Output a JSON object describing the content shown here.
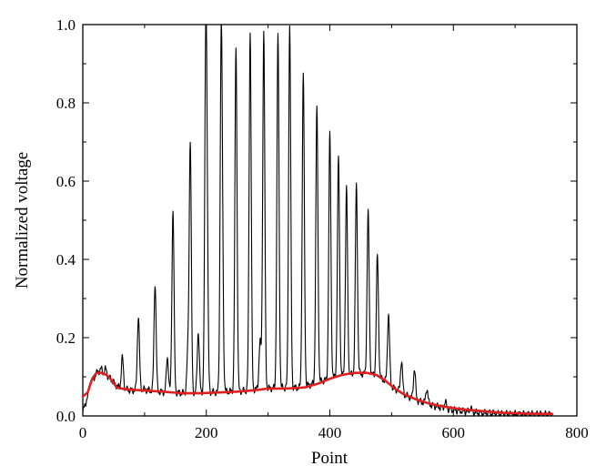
{
  "chart_data": {
    "type": "line",
    "title": "",
    "xlabel": "Point",
    "ylabel": "Normalized voltage",
    "xlim": [
      0,
      800
    ],
    "ylim": [
      0,
      1.0
    ],
    "xticks": [
      "0",
      "200",
      "400",
      "600",
      "800"
    ],
    "yticks": [
      "0.0",
      "0.2",
      "0.4",
      "0.6",
      "0.8",
      "1.0"
    ],
    "grid": false,
    "legend": "none",
    "series": [
      {
        "color": "#000000",
        "style": "line",
        "values": [],
        "baseline": [
          [
            0,
            0.01
          ],
          [
            8,
            0.05
          ],
          [
            15,
            0.09
          ],
          [
            25,
            0.115
          ],
          [
            35,
            0.105
          ],
          [
            45,
            0.095
          ],
          [
            50,
            0.085
          ],
          [
            60,
            0.07
          ],
          [
            80,
            0.065
          ],
          [
            100,
            0.068
          ],
          [
            120,
            0.062
          ],
          [
            140,
            0.06
          ],
          [
            170,
            0.058
          ],
          [
            200,
            0.06
          ],
          [
            230,
            0.062
          ],
          [
            260,
            0.064
          ],
          [
            290,
            0.07
          ],
          [
            320,
            0.072
          ],
          [
            350,
            0.072
          ],
          [
            380,
            0.085
          ],
          [
            410,
            0.1
          ],
          [
            430,
            0.105
          ],
          [
            450,
            0.108
          ],
          [
            470,
            0.105
          ],
          [
            490,
            0.09
          ],
          [
            500,
            0.075
          ],
          [
            520,
            0.055
          ],
          [
            540,
            0.04
          ],
          [
            570,
            0.025
          ],
          [
            600,
            0.015
          ],
          [
            640,
            0.008
          ],
          [
            680,
            0.005
          ],
          [
            720,
            0.004
          ],
          [
            760,
            0.004
          ]
        ],
        "peaks": [
          [
            13,
            0.09
          ],
          [
            30,
            0.12
          ],
          [
            37,
            0.12
          ],
          [
            64,
            0.15
          ],
          [
            90,
            0.255
          ],
          [
            117,
            0.34
          ],
          [
            137,
            0.15
          ],
          [
            146,
            0.525
          ],
          [
            170,
            0.15
          ],
          [
            174,
            0.7
          ],
          [
            187,
            0.215
          ],
          [
            199,
            0.83
          ],
          [
            201,
            0.45
          ],
          [
            224,
            0.865
          ],
          [
            226,
            0.32
          ],
          [
            248,
            0.945
          ],
          [
            271,
            0.98
          ],
          [
            287,
            0.19
          ],
          [
            293,
            0.98
          ],
          [
            316,
            0.975
          ],
          [
            335,
            1.0
          ],
          [
            357,
            0.875
          ],
          [
            379,
            0.79
          ],
          [
            400,
            0.72
          ],
          [
            414,
            0.66
          ],
          [
            427,
            0.58
          ],
          [
            443,
            0.59
          ],
          [
            462,
            0.52
          ],
          [
            477,
            0.41
          ],
          [
            495,
            0.26
          ],
          [
            516,
            0.14
          ],
          [
            537,
            0.12
          ],
          [
            557,
            0.07
          ],
          [
            587,
            0.035
          ],
          [
            628,
            0.02
          ],
          [
            658,
            0.008
          ]
        ]
      },
      {
        "color": "#e02020",
        "style": "line",
        "values": [
          [
            0,
            0.05
          ],
          [
            8,
            0.06
          ],
          [
            15,
            0.095
          ],
          [
            22,
            0.11
          ],
          [
            30,
            0.11
          ],
          [
            38,
            0.105
          ],
          [
            45,
            0.095
          ],
          [
            55,
            0.072
          ],
          [
            70,
            0.068
          ],
          [
            100,
            0.065
          ],
          [
            130,
            0.062
          ],
          [
            160,
            0.058
          ],
          [
            190,
            0.058
          ],
          [
            220,
            0.06
          ],
          [
            250,
            0.062
          ],
          [
            280,
            0.066
          ],
          [
            300,
            0.07
          ],
          [
            330,
            0.07
          ],
          [
            360,
            0.073
          ],
          [
            380,
            0.082
          ],
          [
            400,
            0.095
          ],
          [
            420,
            0.105
          ],
          [
            440,
            0.11
          ],
          [
            460,
            0.11
          ],
          [
            475,
            0.105
          ],
          [
            490,
            0.09
          ],
          [
            505,
            0.07
          ],
          [
            520,
            0.055
          ],
          [
            540,
            0.042
          ],
          [
            560,
            0.032
          ],
          [
            580,
            0.025
          ],
          [
            600,
            0.02
          ],
          [
            620,
            0.016
          ],
          [
            650,
            0.012
          ],
          [
            680,
            0.008
          ],
          [
            720,
            0.006
          ],
          [
            760,
            0.005
          ]
        ]
      }
    ]
  }
}
